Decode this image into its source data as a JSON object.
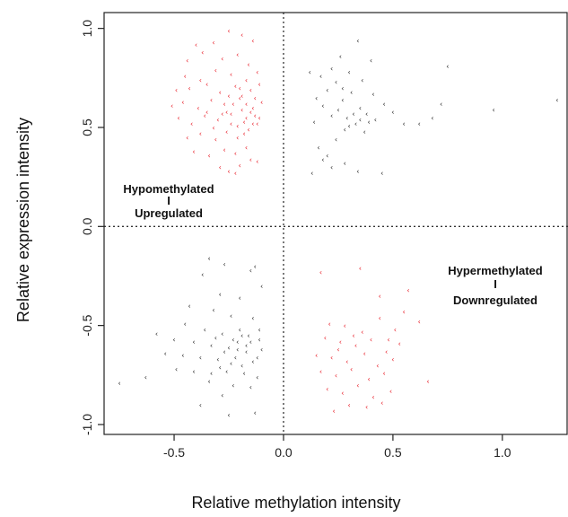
{
  "chart_data": {
    "type": "scatter",
    "title": "",
    "xlabel": "Relative methylation intensity",
    "ylabel": "Relative expression intensity",
    "xlim": [
      -0.82,
      1.3
    ],
    "ylim": [
      -1.05,
      1.08
    ],
    "xticks": [
      -0.5,
      0.0,
      0.5,
      1.0
    ],
    "xtick_labels": [
      "-0.5",
      "0.0",
      "0.5",
      "1.0"
    ],
    "yticks": [
      -1.0,
      -0.5,
      0.0,
      0.5,
      1.0
    ],
    "ytick_labels": [
      "-1.0",
      "-0.5",
      "0.0",
      "0.5",
      "1.0"
    ],
    "reference_lines": {
      "x": 0,
      "y": 0,
      "style": "dotted"
    },
    "point_symbol": "‹",
    "annotations": [
      {
        "id": "hypo",
        "line1": "Hypomethylated",
        "sep": "I",
        "line2": "Upregulated"
      },
      {
        "id": "hyper",
        "line1": "Hypermethylated",
        "sep": "I",
        "line2": "Downregulated"
      }
    ],
    "series": [
      {
        "color": "#e8202a",
        "points": [
          [
            -0.4,
            0.92
          ],
          [
            -0.32,
            0.93
          ],
          [
            -0.25,
            0.99
          ],
          [
            -0.19,
            0.97
          ],
          [
            -0.14,
            0.94
          ],
          [
            -0.44,
            0.84
          ],
          [
            -0.37,
            0.88
          ],
          [
            -0.28,
            0.85
          ],
          [
            -0.21,
            0.87
          ],
          [
            -0.16,
            0.82
          ],
          [
            -0.45,
            0.76
          ],
          [
            -0.38,
            0.74
          ],
          [
            -0.31,
            0.79
          ],
          [
            -0.24,
            0.77
          ],
          [
            -0.17,
            0.74
          ],
          [
            -0.12,
            0.78
          ],
          [
            -0.49,
            0.69
          ],
          [
            -0.43,
            0.7
          ],
          [
            -0.35,
            0.72
          ],
          [
            -0.29,
            0.68
          ],
          [
            -0.22,
            0.71
          ],
          [
            -0.15,
            0.69
          ],
          [
            -0.11,
            0.72
          ],
          [
            -0.51,
            0.61
          ],
          [
            -0.46,
            0.63
          ],
          [
            -0.39,
            0.6
          ],
          [
            -0.33,
            0.64
          ],
          [
            -0.27,
            0.62
          ],
          [
            -0.2,
            0.65
          ],
          [
            -0.14,
            0.6
          ],
          [
            -0.1,
            0.63
          ],
          [
            -0.48,
            0.55
          ],
          [
            -0.42,
            0.52
          ],
          [
            -0.36,
            0.56
          ],
          [
            -0.3,
            0.54
          ],
          [
            -0.24,
            0.57
          ],
          [
            -0.18,
            0.53
          ],
          [
            -0.13,
            0.56
          ],
          [
            -0.44,
            0.45
          ],
          [
            -0.38,
            0.47
          ],
          [
            -0.31,
            0.44
          ],
          [
            -0.26,
            0.48
          ],
          [
            -0.21,
            0.45
          ],
          [
            -0.16,
            0.49
          ],
          [
            -0.41,
            0.38
          ],
          [
            -0.34,
            0.36
          ],
          [
            -0.27,
            0.39
          ],
          [
            -0.22,
            0.37
          ],
          [
            -0.17,
            0.4
          ],
          [
            -0.29,
            0.3
          ],
          [
            -0.25,
            0.28
          ],
          [
            -0.2,
            0.31
          ],
          [
            -0.15,
            0.34
          ],
          [
            -0.12,
            0.33
          ],
          [
            -0.22,
            0.27
          ],
          [
            -0.26,
            0.58
          ],
          [
            -0.23,
            0.62
          ],
          [
            -0.19,
            0.66
          ],
          [
            -0.15,
            0.58
          ],
          [
            -0.12,
            0.52
          ],
          [
            -0.21,
            0.51
          ],
          [
            -0.17,
            0.55
          ],
          [
            -0.28,
            0.57
          ],
          [
            -0.32,
            0.5
          ],
          [
            -0.19,
            0.59
          ],
          [
            -0.13,
            0.65
          ],
          [
            -0.11,
            0.55
          ],
          [
            -0.24,
            0.52
          ],
          [
            -0.14,
            0.52
          ],
          [
            -0.2,
            0.7
          ],
          [
            -0.17,
            0.62
          ],
          [
            -0.25,
            0.66
          ],
          [
            -0.18,
            0.47
          ],
          [
            -0.35,
            0.58
          ],
          [
            0.17,
            -0.23
          ],
          [
            0.35,
            -0.21
          ],
          [
            0.44,
            -0.35
          ],
          [
            0.57,
            -0.32
          ],
          [
            0.62,
            -0.48
          ],
          [
            0.21,
            -0.49
          ],
          [
            0.28,
            -0.5
          ],
          [
            0.36,
            -0.53
          ],
          [
            0.44,
            -0.46
          ],
          [
            0.51,
            -0.52
          ],
          [
            0.55,
            -0.43
          ],
          [
            0.19,
            -0.56
          ],
          [
            0.26,
            -0.58
          ],
          [
            0.33,
            -0.6
          ],
          [
            0.4,
            -0.57
          ],
          [
            0.47,
            -0.63
          ],
          [
            0.53,
            -0.59
          ],
          [
            0.15,
            -0.65
          ],
          [
            0.22,
            -0.66
          ],
          [
            0.29,
            -0.68
          ],
          [
            0.37,
            -0.64
          ],
          [
            0.43,
            -0.7
          ],
          [
            0.5,
            -0.67
          ],
          [
            0.17,
            -0.73
          ],
          [
            0.24,
            -0.75
          ],
          [
            0.31,
            -0.72
          ],
          [
            0.39,
            -0.77
          ],
          [
            0.46,
            -0.74
          ],
          [
            0.2,
            -0.82
          ],
          [
            0.27,
            -0.84
          ],
          [
            0.34,
            -0.8
          ],
          [
            0.41,
            -0.86
          ],
          [
            0.49,
            -0.83
          ],
          [
            0.66,
            -0.78
          ],
          [
            0.23,
            -0.93
          ],
          [
            0.3,
            -0.9
          ],
          [
            0.38,
            -0.91
          ],
          [
            0.45,
            -0.89
          ],
          [
            0.25,
            -0.62
          ],
          [
            0.32,
            -0.55
          ],
          [
            0.48,
            -0.57
          ]
        ]
      },
      {
        "color": "#2a2a2a",
        "points": [
          [
            0.34,
            0.94
          ],
          [
            0.26,
            0.86
          ],
          [
            0.4,
            0.84
          ],
          [
            0.22,
            0.8
          ],
          [
            0.3,
            0.78
          ],
          [
            0.12,
            0.78
          ],
          [
            0.17,
            0.76
          ],
          [
            0.36,
            0.74
          ],
          [
            0.24,
            0.73
          ],
          [
            0.2,
            0.69
          ],
          [
            0.31,
            0.68
          ],
          [
            0.15,
            0.65
          ],
          [
            0.27,
            0.64
          ],
          [
            0.41,
            0.67
          ],
          [
            0.18,
            0.61
          ],
          [
            0.25,
            0.59
          ],
          [
            0.35,
            0.6
          ],
          [
            0.46,
            0.62
          ],
          [
            0.22,
            0.56
          ],
          [
            0.29,
            0.55
          ],
          [
            0.38,
            0.57
          ],
          [
            0.5,
            0.58
          ],
          [
            0.14,
            0.53
          ],
          [
            0.33,
            0.52
          ],
          [
            0.42,
            0.54
          ],
          [
            0.55,
            0.52
          ],
          [
            0.62,
            0.52
          ],
          [
            0.68,
            0.55
          ],
          [
            0.72,
            0.62
          ],
          [
            0.75,
            0.81
          ],
          [
            0.96,
            0.59
          ],
          [
            1.25,
            0.64
          ],
          [
            0.28,
            0.49
          ],
          [
            0.37,
            0.48
          ],
          [
            0.24,
            0.44
          ],
          [
            0.16,
            0.4
          ],
          [
            0.2,
            0.36
          ],
          [
            0.18,
            0.34
          ],
          [
            0.28,
            0.32
          ],
          [
            0.22,
            0.3
          ],
          [
            0.34,
            0.28
          ],
          [
            0.13,
            0.27
          ],
          [
            0.45,
            0.27
          ],
          [
            0.27,
            0.7
          ],
          [
            0.32,
            0.57
          ],
          [
            0.35,
            0.54
          ],
          [
            0.39,
            0.53
          ],
          [
            0.3,
            0.51
          ],
          [
            -0.34,
            -0.16
          ],
          [
            -0.27,
            -0.19
          ],
          [
            -0.13,
            -0.2
          ],
          [
            -0.15,
            -0.22
          ],
          [
            -0.37,
            -0.24
          ],
          [
            -0.1,
            -0.3
          ],
          [
            -0.29,
            -0.34
          ],
          [
            -0.2,
            -0.36
          ],
          [
            -0.43,
            -0.4
          ],
          [
            -0.32,
            -0.42
          ],
          [
            -0.24,
            -0.45
          ],
          [
            -0.14,
            -0.46
          ],
          [
            -0.45,
            -0.49
          ],
          [
            -0.36,
            -0.52
          ],
          [
            -0.28,
            -0.54
          ],
          [
            -0.19,
            -0.55
          ],
          [
            -0.11,
            -0.52
          ],
          [
            -0.58,
            -0.54
          ],
          [
            -0.5,
            -0.57
          ],
          [
            -0.41,
            -0.58
          ],
          [
            -0.33,
            -0.6
          ],
          [
            -0.25,
            -0.61
          ],
          [
            -0.17,
            -0.6
          ],
          [
            -0.1,
            -0.62
          ],
          [
            -0.54,
            -0.64
          ],
          [
            -0.46,
            -0.65
          ],
          [
            -0.38,
            -0.66
          ],
          [
            -0.3,
            -0.67
          ],
          [
            -0.22,
            -0.66
          ],
          [
            -0.14,
            -0.68
          ],
          [
            -0.49,
            -0.72
          ],
          [
            -0.41,
            -0.73
          ],
          [
            -0.33,
            -0.74
          ],
          [
            -0.26,
            -0.73
          ],
          [
            -0.18,
            -0.74
          ],
          [
            -0.12,
            -0.76
          ],
          [
            -0.34,
            -0.78
          ],
          [
            -0.23,
            -0.8
          ],
          [
            -0.15,
            -0.81
          ],
          [
            -0.63,
            -0.76
          ],
          [
            -0.75,
            -0.79
          ],
          [
            -0.28,
            -0.85
          ],
          [
            -0.38,
            -0.9
          ],
          [
            -0.25,
            -0.95
          ],
          [
            -0.13,
            -0.94
          ],
          [
            -0.21,
            -0.58
          ],
          [
            -0.17,
            -0.63
          ],
          [
            -0.23,
            -0.57
          ],
          [
            -0.19,
            -0.7
          ],
          [
            -0.27,
            -0.63
          ],
          [
            -0.15,
            -0.58
          ],
          [
            -0.12,
            -0.66
          ],
          [
            -0.2,
            -0.52
          ],
          [
            -0.31,
            -0.56
          ],
          [
            -0.16,
            -0.55
          ],
          [
            -0.24,
            -0.69
          ],
          [
            -0.11,
            -0.57
          ],
          [
            -0.29,
            -0.71
          ],
          [
            -0.21,
            -0.62
          ]
        ]
      }
    ]
  }
}
